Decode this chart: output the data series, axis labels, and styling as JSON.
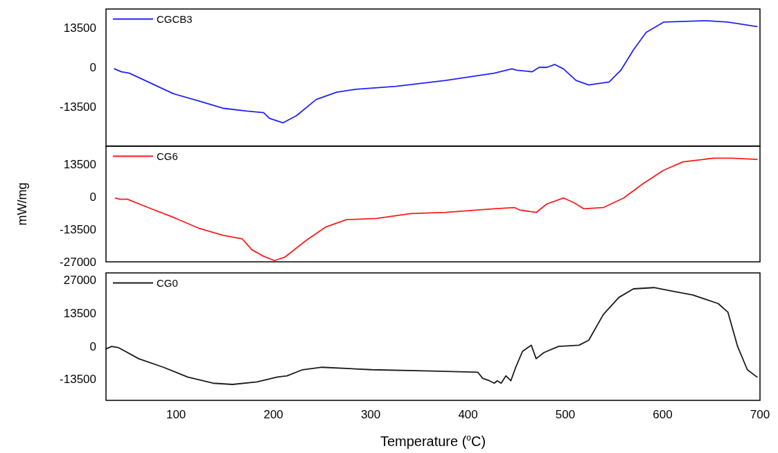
{
  "chart_data": [
    {
      "type": "line",
      "legend": "top left",
      "tick_labels": "y",
      "xlim": [
        28,
        700
      ],
      "xticks": [
        100,
        200,
        300,
        400,
        500,
        600,
        700
      ],
      "ylim": [
        -27000,
        20000
      ],
      "yticks": [
        -13500,
        0,
        13500
      ],
      "x": [
        36.7,
        43.8,
        52,
        71.5,
        97,
        123,
        148,
        173,
        190,
        196,
        210,
        224,
        244,
        265,
        285,
        326,
        377,
        427,
        445,
        450,
        466,
        473,
        481,
        489,
        498,
        511,
        524,
        545,
        557,
        570,
        583,
        601,
        644,
        667,
        697
      ],
      "series": [
        {
          "name": "CGCB3",
          "color": "#2020ff",
          "values": [
            -500,
            -1500,
            -2000,
            -5000,
            -9000,
            -11500,
            -14000,
            -15000,
            -15500,
            -17500,
            -19000,
            -16500,
            -11000,
            -8500,
            -7500,
            -6500,
            -4500,
            -2000,
            -500,
            -1000,
            -1500,
            0,
            0,
            1000,
            -500,
            -4500,
            -6000,
            -5000,
            -1000,
            6000,
            12000,
            15500,
            16000,
            15500,
            14000
          ]
        }
      ]
    },
    {
      "type": "line",
      "legend": "top left",
      "tick_labels": "y",
      "ylabel": "mW/mg",
      "xlim": [
        28,
        700
      ],
      "xticks": [
        100,
        200,
        300,
        400,
        500,
        600,
        700
      ],
      "ylim": [
        -27000,
        21000
      ],
      "yticks": [
        -27000,
        -13500,
        0,
        13500
      ],
      "x": [
        37.7,
        42,
        50,
        71.5,
        97,
        123,
        148,
        168,
        178,
        189,
        201,
        212,
        234,
        254,
        275,
        306,
        341,
        377,
        427,
        448,
        453,
        470,
        481,
        498,
        509,
        519,
        539,
        560,
        580,
        601,
        621,
        652,
        671,
        697
      ],
      "series": [
        {
          "name": "CG6",
          "color": "#ff1a1a",
          "values": [
            -500,
            -1000,
            -1000,
            -4500,
            -8500,
            -13000,
            -16000,
            -17500,
            -22000,
            -24500,
            -26500,
            -25000,
            -18000,
            -12500,
            -9500,
            -9000,
            -7000,
            -6500,
            -5000,
            -4500,
            -5500,
            -6500,
            -3000,
            -500,
            -2500,
            -5000,
            -4500,
            -500,
            5500,
            11000,
            14500,
            16000,
            16000,
            15500
          ]
        }
      ]
    },
    {
      "type": "line",
      "legend": "top left",
      "xlabel": "Temperature ($^{o}$C)",
      "xlim": [
        28,
        700
      ],
      "xticks": [
        100,
        200,
        300,
        400,
        500,
        600,
        700
      ],
      "ylim": [
        -22000,
        30000
      ],
      "yticks": [
        -13500,
        0,
        13500,
        27000
      ],
      "x": [
        28.3,
        33.8,
        41,
        61.6,
        87,
        112,
        138,
        158,
        183,
        204,
        214,
        230,
        250,
        301,
        362,
        410,
        415,
        422,
        427,
        430,
        434,
        439,
        444,
        449,
        456,
        465,
        470,
        478,
        493,
        514,
        524,
        539,
        555,
        570,
        591,
        611,
        631,
        657,
        667,
        677,
        687,
        697
      ],
      "series": [
        {
          "name": "CG0",
          "color": "#1a1a1a",
          "values": [
            -1000,
            0,
            -500,
            -5000,
            -8500,
            -12500,
            -15000,
            -15500,
            -14500,
            -12500,
            -12000,
            -9500,
            -8500,
            -9500,
            -10000,
            -10500,
            -13000,
            -14000,
            -15000,
            -14000,
            -15000,
            -12000,
            -14000,
            -8500,
            -2000,
            500,
            -5000,
            -2500,
            0,
            500,
            2500,
            13000,
            20000,
            23500,
            24000,
            22500,
            21000,
            17500,
            14000,
            0,
            -9500,
            -12500
          ]
        }
      ]
    }
  ]
}
